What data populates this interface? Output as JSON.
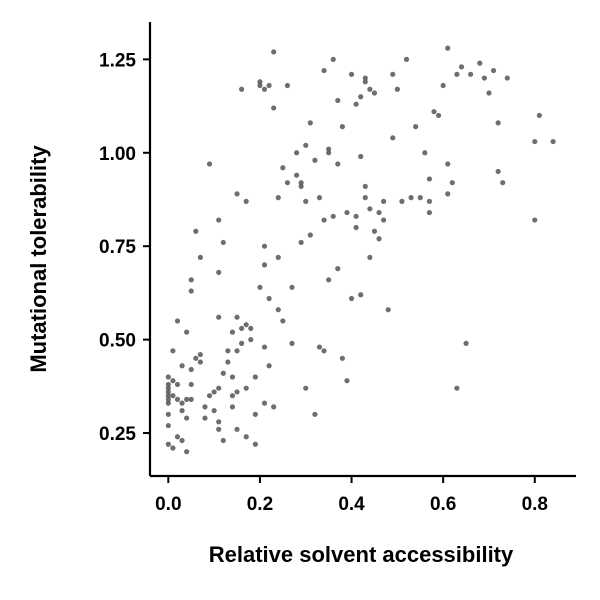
{
  "chart_data": {
    "type": "scatter",
    "title": "",
    "xlabel": "Relative solvent accessibility",
    "ylabel": "Mutational tolerability",
    "xlim": [
      -0.04,
      0.89
    ],
    "ylim": [
      0.135,
      1.35
    ],
    "xticks": [
      {
        "value": 0.0,
        "label": "0.0"
      },
      {
        "value": 0.2,
        "label": "0.2"
      },
      {
        "value": 0.4,
        "label": "0.4"
      },
      {
        "value": 0.6,
        "label": "0.6"
      },
      {
        "value": 0.8,
        "label": "0.8"
      }
    ],
    "yticks": [
      {
        "value": 0.25,
        "label": "0.25"
      },
      {
        "value": 0.5,
        "label": "0.50"
      },
      {
        "value": 0.75,
        "label": "0.75"
      },
      {
        "value": 1.0,
        "label": "1.00"
      },
      {
        "value": 1.25,
        "label": "1.25"
      }
    ],
    "grid": false,
    "point_color": "#555555",
    "points": [
      [
        0.0,
        0.4
      ],
      [
        0.0,
        0.38
      ],
      [
        0.0,
        0.37
      ],
      [
        0.0,
        0.36
      ],
      [
        0.0,
        0.35
      ],
      [
        0.0,
        0.34
      ],
      [
        0.0,
        0.33
      ],
      [
        0.0,
        0.3
      ],
      [
        0.0,
        0.27
      ],
      [
        0.0,
        0.22
      ],
      [
        0.01,
        0.39
      ],
      [
        0.01,
        0.35
      ],
      [
        0.01,
        0.21
      ],
      [
        0.01,
        0.47
      ],
      [
        0.02,
        0.55
      ],
      [
        0.02,
        0.38
      ],
      [
        0.02,
        0.34
      ],
      [
        0.02,
        0.24
      ],
      [
        0.03,
        0.33
      ],
      [
        0.03,
        0.31
      ],
      [
        0.03,
        0.43
      ],
      [
        0.03,
        0.23
      ],
      [
        0.04,
        0.52
      ],
      [
        0.04,
        0.34
      ],
      [
        0.04,
        0.29
      ],
      [
        0.04,
        0.2
      ],
      [
        0.05,
        0.34
      ],
      [
        0.05,
        0.38
      ],
      [
        0.05,
        0.42
      ],
      [
        0.05,
        0.63
      ],
      [
        0.05,
        0.66
      ],
      [
        0.06,
        0.45
      ],
      [
        0.06,
        0.79
      ],
      [
        0.07,
        0.44
      ],
      [
        0.07,
        0.46
      ],
      [
        0.07,
        0.72
      ],
      [
        0.08,
        0.32
      ],
      [
        0.08,
        0.29
      ],
      [
        0.09,
        0.35
      ],
      [
        0.09,
        0.97
      ],
      [
        0.1,
        0.36
      ],
      [
        0.1,
        0.31
      ],
      [
        0.11,
        0.82
      ],
      [
        0.11,
        0.68
      ],
      [
        0.11,
        0.37
      ],
      [
        0.11,
        0.28
      ],
      [
        0.11,
        0.26
      ],
      [
        0.11,
        0.56
      ],
      [
        0.12,
        0.41
      ],
      [
        0.12,
        0.23
      ],
      [
        0.12,
        0.76
      ],
      [
        0.13,
        0.47
      ],
      [
        0.13,
        0.44
      ],
      [
        0.14,
        0.4
      ],
      [
        0.14,
        0.35
      ],
      [
        0.14,
        0.32
      ],
      [
        0.14,
        0.52
      ],
      [
        0.15,
        0.89
      ],
      [
        0.15,
        0.56
      ],
      [
        0.15,
        0.47
      ],
      [
        0.15,
        0.36
      ],
      [
        0.15,
        0.26
      ],
      [
        0.16,
        0.49
      ],
      [
        0.16,
        1.17
      ],
      [
        0.16,
        0.53
      ],
      [
        0.17,
        0.87
      ],
      [
        0.17,
        0.54
      ],
      [
        0.17,
        0.37
      ],
      [
        0.17,
        0.24
      ],
      [
        0.18,
        0.53
      ],
      [
        0.18,
        0.5
      ],
      [
        0.19,
        0.4
      ],
      [
        0.19,
        0.3
      ],
      [
        0.19,
        0.22
      ],
      [
        0.2,
        0.64
      ],
      [
        0.2,
        1.18
      ],
      [
        0.2,
        1.19
      ],
      [
        0.21,
        1.17
      ],
      [
        0.21,
        0.75
      ],
      [
        0.21,
        0.48
      ],
      [
        0.21,
        0.33
      ],
      [
        0.21,
        0.7
      ],
      [
        0.22,
        1.18
      ],
      [
        0.22,
        0.61
      ],
      [
        0.22,
        0.43
      ],
      [
        0.23,
        1.12
      ],
      [
        0.23,
        1.27
      ],
      [
        0.23,
        0.32
      ],
      [
        0.24,
        0.58
      ],
      [
        0.24,
        0.72
      ],
      [
        0.24,
        0.88
      ],
      [
        0.25,
        0.96
      ],
      [
        0.25,
        0.55
      ],
      [
        0.26,
        1.18
      ],
      [
        0.26,
        0.92
      ],
      [
        0.27,
        0.64
      ],
      [
        0.27,
        0.49
      ],
      [
        0.28,
        1.0
      ],
      [
        0.28,
        0.94
      ],
      [
        0.29,
        0.92
      ],
      [
        0.29,
        0.91
      ],
      [
        0.29,
        0.76
      ],
      [
        0.3,
        0.37
      ],
      [
        0.3,
        1.02
      ],
      [
        0.3,
        0.87
      ],
      [
        0.31,
        0.78
      ],
      [
        0.31,
        1.08
      ],
      [
        0.32,
        0.98
      ],
      [
        0.32,
        0.3
      ],
      [
        0.33,
        0.88
      ],
      [
        0.33,
        0.48
      ],
      [
        0.34,
        1.22
      ],
      [
        0.34,
        0.47
      ],
      [
        0.34,
        0.82
      ],
      [
        0.35,
        1.01
      ],
      [
        0.35,
        1.0
      ],
      [
        0.35,
        0.66
      ],
      [
        0.36,
        1.25
      ],
      [
        0.36,
        0.83
      ],
      [
        0.37,
        1.14
      ],
      [
        0.37,
        0.97
      ],
      [
        0.37,
        0.69
      ],
      [
        0.38,
        1.07
      ],
      [
        0.38,
        0.45
      ],
      [
        0.39,
        0.84
      ],
      [
        0.39,
        0.39
      ],
      [
        0.4,
        1.21
      ],
      [
        0.4,
        0.61
      ],
      [
        0.41,
        1.13
      ],
      [
        0.41,
        0.83
      ],
      [
        0.41,
        0.8
      ],
      [
        0.42,
        1.15
      ],
      [
        0.42,
        0.99
      ],
      [
        0.42,
        0.62
      ],
      [
        0.43,
        1.2
      ],
      [
        0.43,
        1.19
      ],
      [
        0.43,
        0.88
      ],
      [
        0.43,
        0.91
      ],
      [
        0.44,
        1.17
      ],
      [
        0.44,
        0.85
      ],
      [
        0.44,
        0.72
      ],
      [
        0.45,
        1.16
      ],
      [
        0.45,
        0.79
      ],
      [
        0.46,
        0.84
      ],
      [
        0.46,
        0.77
      ],
      [
        0.47,
        0.87
      ],
      [
        0.47,
        0.82
      ],
      [
        0.48,
        0.58
      ],
      [
        0.49,
        1.04
      ],
      [
        0.49,
        1.21
      ],
      [
        0.5,
        1.17
      ],
      [
        0.51,
        0.87
      ],
      [
        0.52,
        1.25
      ],
      [
        0.53,
        0.88
      ],
      [
        0.54,
        1.07
      ],
      [
        0.55,
        0.88
      ],
      [
        0.56,
        1.0
      ],
      [
        0.57,
        0.93
      ],
      [
        0.57,
        0.84
      ],
      [
        0.57,
        0.87
      ],
      [
        0.58,
        1.11
      ],
      [
        0.59,
        1.1
      ],
      [
        0.6,
        1.18
      ],
      [
        0.61,
        0.97
      ],
      [
        0.61,
        0.89
      ],
      [
        0.61,
        1.28
      ],
      [
        0.62,
        0.92
      ],
      [
        0.63,
        0.37
      ],
      [
        0.63,
        1.21
      ],
      [
        0.64,
        1.23
      ],
      [
        0.65,
        0.49
      ],
      [
        0.66,
        1.21
      ],
      [
        0.68,
        1.24
      ],
      [
        0.69,
        1.2
      ],
      [
        0.7,
        1.16
      ],
      [
        0.71,
        1.22
      ],
      [
        0.72,
        1.08
      ],
      [
        0.72,
        0.95
      ],
      [
        0.73,
        0.92
      ],
      [
        0.74,
        1.2
      ],
      [
        0.8,
        1.03
      ],
      [
        0.8,
        0.82
      ],
      [
        0.81,
        1.1
      ],
      [
        0.84,
        1.03
      ]
    ]
  }
}
